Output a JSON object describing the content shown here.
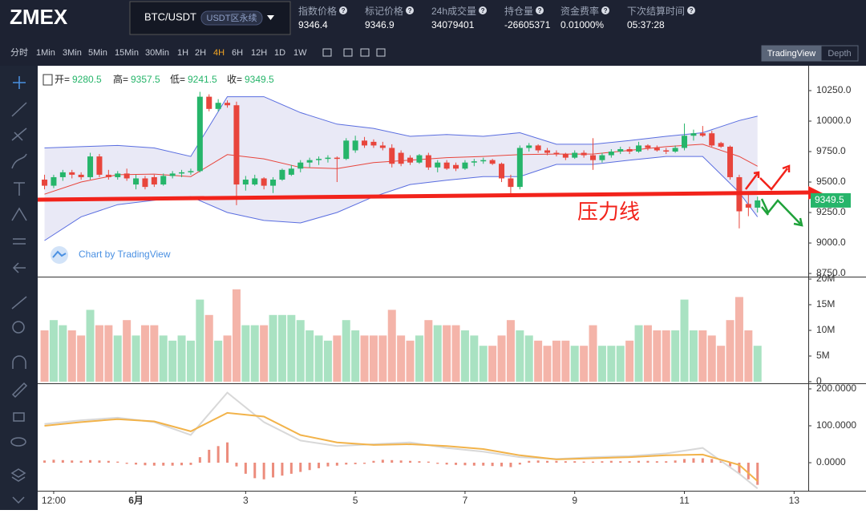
{
  "header": {
    "logo": "ZMEX",
    "symbol": "BTC/USDT",
    "badge": "USDT区永续",
    "stats": [
      {
        "label": "指数价格",
        "value": "9346.4"
      },
      {
        "label": "标记价格",
        "value": "9346.9"
      },
      {
        "label": "24h成交量",
        "value": "34079401"
      },
      {
        "label": "持仓量",
        "value": "-26605371"
      },
      {
        "label": "资金费率",
        "value": "0.01000%"
      },
      {
        "label": "下次结算时间",
        "value": "05:37:28"
      }
    ]
  },
  "toolbar": {
    "timeframes": [
      "分时",
      "1Min",
      "3Min",
      "5Min",
      "15Min",
      "30Min",
      "1H",
      "2H",
      "4H",
      "6H",
      "12H",
      "1D",
      "1W"
    ],
    "active_index": 8,
    "views": [
      "TradingView",
      "Depth"
    ],
    "active_view": 0
  },
  "chart_data": {
    "type": "candlestick",
    "watermark": "Chart by TradingView",
    "annotation": "压力线",
    "legend": {
      "open_label": "开=",
      "open": 9280.5,
      "high_label": "高=",
      "high": 9357.5,
      "low_label": "低=",
      "low": 9241.5,
      "close_label": "收=",
      "close": 9349.5
    },
    "last_price": {
      "value": 9349.5,
      "label": "9349.5"
    },
    "up_color": "#26b56a",
    "down_color": "#e8453c",
    "volume_up_color": "#a9e2c2",
    "volume_down_color": "#f4b4a9",
    "macd_color": "#ec8c7c",
    "xlim": [
      -0.75,
      83.55
    ],
    "xticks": [
      {
        "value": 1,
        "label": "12:00"
      },
      {
        "value": 10,
        "label": "6月"
      },
      {
        "value": 22,
        "label": "3"
      },
      {
        "value": 34,
        "label": "5"
      },
      {
        "value": 46,
        "label": "7"
      },
      {
        "value": 58,
        "label": "9"
      },
      {
        "value": 70,
        "label": "11"
      },
      {
        "value": 82,
        "label": "13"
      }
    ],
    "ylim": [
      8724,
      10454
    ],
    "yticks": [
      {
        "value": 8750,
        "label": "8750.0"
      },
      {
        "value": 9000,
        "label": "9000.0"
      },
      {
        "value": 9250,
        "label": "9250.0"
      },
      {
        "value": 9500,
        "label": "9500.0"
      },
      {
        "value": 9750,
        "label": "9750.0"
      },
      {
        "value": 10000,
        "label": "10000.0"
      },
      {
        "value": 10250,
        "label": "10250.0"
      }
    ],
    "candles": [
      [
        9520,
        9560,
        9440,
        9470
      ],
      [
        9470,
        9560,
        9450,
        9540
      ],
      [
        9540,
        9600,
        9510,
        9580
      ],
      [
        9580,
        9600,
        9530,
        9560
      ],
      [
        9560,
        9580,
        9520,
        9540
      ],
      [
        9540,
        9740,
        9520,
        9710
      ],
      [
        9710,
        9730,
        9540,
        9560
      ],
      [
        9560,
        9600,
        9520,
        9540
      ],
      [
        9540,
        9590,
        9520,
        9570
      ],
      [
        9570,
        9610,
        9510,
        9530
      ],
      [
        9480,
        9560,
        9440,
        9530
      ],
      [
        9530,
        9550,
        9440,
        9460
      ],
      [
        9540,
        9560,
        9460,
        9480
      ],
      [
        9480,
        9570,
        9470,
        9550
      ],
      [
        9550,
        9590,
        9530,
        9570
      ],
      [
        9570,
        9600,
        9540,
        9580
      ],
      [
        9580,
        9610,
        9560,
        9590
      ],
      [
        9590,
        10240,
        9580,
        10200
      ],
      [
        10200,
        10220,
        10080,
        10100
      ],
      [
        10100,
        10180,
        10080,
        10150
      ],
      [
        10150,
        10170,
        10110,
        10130
      ],
      [
        10130,
        10160,
        9310,
        9480
      ],
      [
        9480,
        9550,
        9430,
        9520
      ],
      [
        9480,
        9560,
        9470,
        9530
      ],
      [
        9530,
        9540,
        9440,
        9470
      ],
      [
        9470,
        9540,
        9410,
        9520
      ],
      [
        9520,
        9610,
        9510,
        9600
      ],
      [
        9560,
        9640,
        9550,
        9610
      ],
      [
        9610,
        9680,
        9580,
        9660
      ],
      [
        9660,
        9700,
        9620,
        9680
      ],
      [
        9680,
        9710,
        9640,
        9690
      ],
      [
        9690,
        9720,
        9660,
        9700
      ],
      [
        9700,
        9710,
        9500,
        9690
      ],
      [
        9690,
        9860,
        9680,
        9840
      ],
      [
        9760,
        9880,
        9740,
        9840
      ],
      [
        9840,
        9870,
        9780,
        9800
      ],
      [
        9830,
        9850,
        9780,
        9800
      ],
      [
        9800,
        9830,
        9760,
        9780
      ],
      [
        9780,
        9810,
        9620,
        9650
      ],
      [
        9740,
        9760,
        9630,
        9650
      ],
      [
        9700,
        9720,
        9640,
        9660
      ],
      [
        9660,
        9730,
        9650,
        9720
      ],
      [
        9720,
        9740,
        9600,
        9620
      ],
      [
        9620,
        9680,
        9580,
        9660
      ],
      [
        9660,
        9680,
        9600,
        9610
      ],
      [
        9640,
        9660,
        9590,
        9610
      ],
      [
        9610,
        9680,
        9600,
        9660
      ],
      [
        9660,
        9690,
        9630,
        9670
      ],
      [
        9670,
        9700,
        9650,
        9680
      ],
      [
        9680,
        9690,
        9640,
        9650
      ],
      [
        9650,
        9660,
        9500,
        9530
      ],
      [
        9530,
        9560,
        9400,
        9460
      ],
      [
        9460,
        9800,
        9440,
        9780
      ],
      [
        9780,
        9820,
        9750,
        9800
      ],
      [
        9800,
        9810,
        9740,
        9760
      ],
      [
        9760,
        9780,
        9720,
        9740
      ],
      [
        9740,
        9760,
        9710,
        9730
      ],
      [
        9730,
        9740,
        9680,
        9700
      ],
      [
        9700,
        9760,
        9690,
        9740
      ],
      [
        9740,
        9760,
        9700,
        9720
      ],
      [
        9720,
        9860,
        9600,
        9680
      ],
      [
        9680,
        9740,
        9660,
        9720
      ],
      [
        9720,
        9770,
        9700,
        9750
      ],
      [
        9750,
        9790,
        9730,
        9770
      ],
      [
        9770,
        9790,
        9730,
        9750
      ],
      [
        9750,
        9830,
        9740,
        9800
      ],
      [
        9800,
        9810,
        9760,
        9780
      ],
      [
        9780,
        9800,
        9750,
        9760
      ],
      [
        9760,
        9780,
        9730,
        9750
      ],
      [
        9750,
        9800,
        9740,
        9780
      ],
      [
        9780,
        9980,
        9760,
        9880
      ],
      [
        9880,
        9930,
        9840,
        9900
      ],
      [
        9900,
        9960,
        9870,
        9880
      ],
      [
        9900,
        9920,
        9790,
        9800
      ],
      [
        9820,
        9830,
        9780,
        9790
      ],
      [
        9790,
        9800,
        9520,
        9540
      ],
      [
        9540,
        9560,
        9120,
        9260
      ],
      [
        9320,
        9400,
        9220,
        9290
      ],
      [
        9290,
        9380,
        9250,
        9349.5
      ]
    ],
    "bollinger": {
      "x": [
        0,
        4,
        8,
        12,
        16,
        20,
        24,
        28,
        32,
        36,
        40,
        44,
        48,
        52,
        56,
        60,
        64,
        68,
        72,
        76,
        78
      ],
      "upper": [
        9780,
        9790,
        9800,
        9780,
        9710,
        10200,
        10200,
        10070,
        9975,
        9940,
        9875,
        9890,
        9875,
        9905,
        9810,
        9810,
        9840,
        9875,
        9905,
        10005,
        10040
      ],
      "middle": [
        9400,
        9500,
        9560,
        9565,
        9545,
        9725,
        9690,
        9620,
        9610,
        9660,
        9680,
        9700,
        9710,
        9725,
        9730,
        9730,
        9760,
        9790,
        9810,
        9710,
        9630
      ],
      "lower": [
        9020,
        9215,
        9315,
        9350,
        9380,
        9250,
        9185,
        9165,
        9250,
        9380,
        9480,
        9515,
        9545,
        9545,
        9645,
        9645,
        9680,
        9710,
        9710,
        9415,
        9215
      ]
    },
    "volume": {
      "ylim": [
        -312500,
        20312500
      ],
      "yticks": [
        0,
        {
          "value": 5000000,
          "label": "5M"
        },
        {
          "value": 10000000,
          "label": "10M"
        },
        {
          "value": 15000000,
          "label": "15M"
        },
        {
          "value": 20000000,
          "label": "20M"
        }
      ],
      "values": [
        10000000,
        12000000,
        11000000,
        10000000,
        9000000,
        14000000,
        11000000,
        11000000,
        9000000,
        12000000,
        9000000,
        11000000,
        11000000,
        9000000,
        8000000,
        9000000,
        8000000,
        16000000,
        13000000,
        8000000,
        9000000,
        18000000,
        11000000,
        11000000,
        11000000,
        13000000,
        13000000,
        13000000,
        12000000,
        10000000,
        9000000,
        8000000,
        9000000,
        12000000,
        10000000,
        9000000,
        9000000,
        9000000,
        14000000,
        9000000,
        8000000,
        9000000,
        12000000,
        11000000,
        11000000,
        11000000,
        10000000,
        9000000,
        7000000,
        7000000,
        9000000,
        12000000,
        10000000,
        9000000,
        8000000,
        7000000,
        8000000,
        8000000,
        7000000,
        7000000,
        11000000,
        7000000,
        7000000,
        7000000,
        8000000,
        11000000,
        11000000,
        10000000,
        10000000,
        10000000,
        16000000,
        10000000,
        10000000,
        9000000,
        7000000,
        12000000,
        16500000,
        10000000,
        7000000
      ]
    },
    "macd": {
      "ylim": [
        -76,
        213
      ],
      "yticks": [
        {
          "value": 0,
          "label": "0.0000"
        },
        {
          "value": 100,
          "label": "100.0000"
        },
        {
          "value": 200,
          "label": "200.0000"
        }
      ],
      "hist": [
        6,
        8,
        7,
        6,
        5,
        7,
        6,
        5,
        3,
        -3,
        -5,
        -7,
        -8,
        -8,
        -8,
        -7,
        -6,
        15,
        35,
        45,
        55,
        -10,
        -30,
        -42,
        -45,
        -40,
        -35,
        -30,
        -25,
        -20,
        -15,
        -10,
        -8,
        -5,
        -4,
        -3,
        5,
        8,
        7,
        6,
        5,
        4,
        3,
        -3,
        -5,
        -6,
        -7,
        -8,
        -8,
        -9,
        -10,
        -12,
        -5,
        5,
        6,
        5,
        5,
        4,
        4,
        3,
        3,
        4,
        5,
        4,
        4,
        5,
        5,
        4,
        4,
        6,
        10,
        12,
        12,
        10,
        5,
        -10,
        -30,
        -45,
        -60
      ],
      "x": [
        0,
        4,
        8,
        12,
        16,
        20,
        24,
        28,
        32,
        36,
        40,
        44,
        48,
        52,
        56,
        60,
        64,
        68,
        72,
        76,
        78
      ],
      "dif": [
        105,
        115,
        122,
        110,
        75,
        190,
        110,
        60,
        45,
        50,
        55,
        40,
        30,
        15,
        10,
        15,
        18,
        25,
        40,
        -30,
        -70
      ],
      "dea": [
        100,
        110,
        118,
        112,
        85,
        135,
        125,
        75,
        55,
        48,
        50,
        45,
        37,
        20,
        9,
        12,
        15,
        20,
        22,
        -6,
        -50
      ]
    }
  }
}
